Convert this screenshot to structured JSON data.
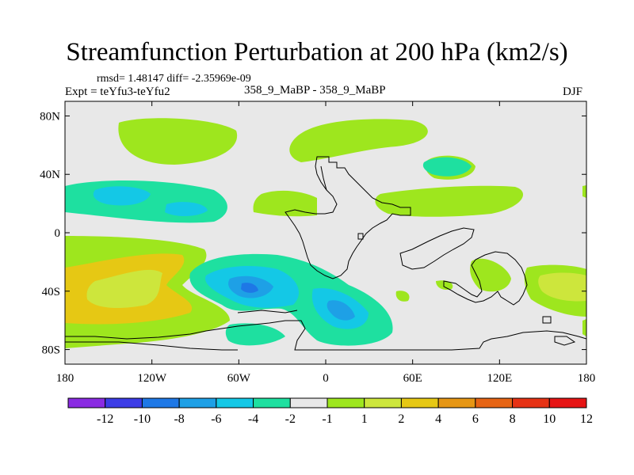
{
  "title": "Streamfunction Perturbation at 200 hPa (km2/s)",
  "stats": "rmsd= 1.48147 diff= -2.35969e-09",
  "experiment": "Expt = teYfu3-teYfu2",
  "period": "358_9_MaBP - 358_9_MaBP",
  "season": "DJF",
  "map": {
    "lon_range": [
      -180,
      180
    ],
    "lat_range": [
      -90,
      90
    ],
    "x_ticks": [
      {
        "lon": -180,
        "label": "180"
      },
      {
        "lon": -120,
        "label": "120W"
      },
      {
        "lon": -60,
        "label": "60W"
      },
      {
        "lon": 0,
        "label": "0"
      },
      {
        "lon": 60,
        "label": "60E"
      },
      {
        "lon": 120,
        "label": "120E"
      },
      {
        "lon": 180,
        "label": "180"
      }
    ],
    "y_ticks": [
      {
        "lat": 80,
        "label": "80N"
      },
      {
        "lat": 40,
        "label": "40N"
      },
      {
        "lat": 0,
        "label": "0"
      },
      {
        "lat": -40,
        "label": "40S"
      },
      {
        "lat": -80,
        "label": "80S"
      }
    ]
  },
  "colorbar": {
    "colors": [
      "#8a2be2",
      "#3c3ce6",
      "#1e78e6",
      "#1ea0e6",
      "#14c8e6",
      "#1ee0a0",
      "#e8e8e8",
      "#9ee61e",
      "#cde63c",
      "#e6c814",
      "#e69614",
      "#e66414",
      "#e63214",
      "#e61414"
    ],
    "labels": [
      "-12",
      "-10",
      "-8",
      "-6",
      "-4",
      "-2",
      "-1",
      "1",
      "2",
      "4",
      "6",
      "8",
      "10",
      "12"
    ]
  }
}
